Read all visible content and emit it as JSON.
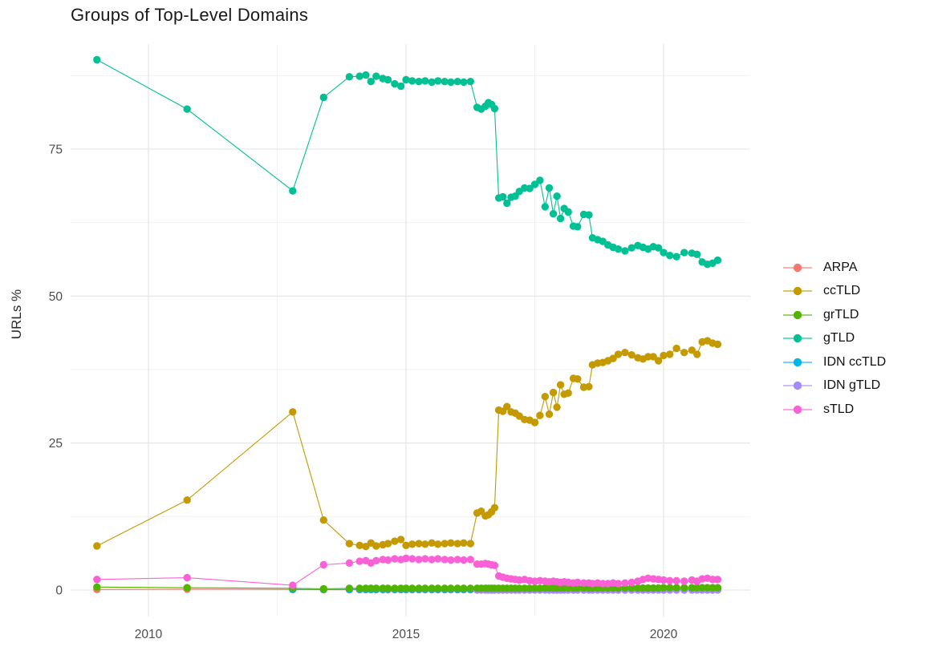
{
  "chart_data": {
    "type": "line",
    "title": "Groups of Top-Level Domains",
    "xlabel": "",
    "ylabel": "URLs %",
    "x_ticks": [
      2010,
      2015,
      2020
    ],
    "x_minor_gridlines": [
      2012.5,
      2017.5
    ],
    "y_ticks": [
      0,
      25,
      50,
      75
    ],
    "y_minor_gridlines": [
      12.5,
      37.5,
      62.5,
      87.5
    ],
    "xlim": [
      2008.5,
      2021.7
    ],
    "ylim": [
      0,
      93
    ],
    "grid": true,
    "legend_position": "right",
    "dense_years": [
      2014.1,
      2014.22,
      2014.32,
      2014.42,
      2014.55,
      2014.65,
      2014.78,
      2014.9,
      2015.0,
      2015.12,
      2015.25,
      2015.37,
      2015.5,
      2015.62,
      2015.75,
      2015.87,
      2016.0,
      2016.12,
      2016.25,
      2016.38,
      2016.46,
      2016.54,
      2016.6,
      2016.66,
      2016.72,
      2016.8,
      2016.88,
      2016.96,
      2017.04,
      2017.12,
      2017.2,
      2017.3,
      2017.4,
      2017.5,
      2017.6,
      2017.7,
      2017.78,
      2017.86,
      2017.93,
      2018.0,
      2018.07,
      2018.15,
      2018.25,
      2018.33,
      2018.45,
      2018.55,
      2018.62,
      2018.72,
      2018.82,
      2018.92,
      2019.02,
      2019.12,
      2019.25,
      2019.38,
      2019.5,
      2019.6,
      2019.7,
      2019.8,
      2019.9,
      2020.0,
      2020.12,
      2020.25,
      2020.4,
      2020.55,
      2020.65,
      2020.75,
      2020.85,
      2020.95,
      2021.05
    ],
    "series": [
      {
        "name": "ARPA",
        "color": "#F8766D",
        "prefix": [
          [
            2009.0,
            0.1
          ],
          [
            2010.75,
            0.15
          ],
          [
            2012.8,
            0.1
          ],
          [
            2013.4,
            0.05
          ],
          [
            2013.9,
            0.05
          ]
        ],
        "dense": [
          0.05,
          0.05,
          0.05,
          0.05,
          0.05,
          0.05,
          0.05,
          0.05,
          0.05,
          0.05,
          0.05,
          0.05,
          0.05,
          0.05,
          0.05,
          0.05,
          0.05,
          0.05,
          0.05,
          0.05,
          0.05,
          0.05,
          0.05,
          0.05,
          0.05,
          0.05,
          0.05,
          0.05,
          0.05,
          0.05,
          0.05,
          0.05,
          0.05,
          0.05,
          0.05,
          0.05,
          0.05,
          0.05,
          0.05,
          0.05,
          0.05,
          0.05,
          0.05,
          0.05,
          0.05,
          0.05,
          0.05,
          0.05,
          0.05,
          0.05,
          0.05,
          0.05,
          0.05,
          0.05,
          0.05,
          0.05,
          0.05,
          0.05,
          0.05,
          0.05,
          0.05,
          0.05,
          0.05,
          0.05,
          0.05,
          0.05,
          0.05,
          0.05,
          0.05
        ]
      },
      {
        "name": "ccTLD",
        "color": "#C49A00",
        "prefix": [
          [
            2009.0,
            7.5
          ],
          [
            2010.75,
            15.3
          ],
          [
            2012.8,
            30.3
          ],
          [
            2013.4,
            11.9
          ],
          [
            2013.9,
            7.9
          ]
        ],
        "dense": [
          7.6,
          7.4,
          8.0,
          7.5,
          7.7,
          7.9,
          8.3,
          8.6,
          7.6,
          7.8,
          7.9,
          7.8,
          8.0,
          7.8,
          7.9,
          8.0,
          7.9,
          8.0,
          7.9,
          13.1,
          13.4,
          12.6,
          12.8,
          13.3,
          14.0,
          30.6,
          30.4,
          31.2,
          30.3,
          30.1,
          29.6,
          29.0,
          28.9,
          28.5,
          29.7,
          32.9,
          29.9,
          33.6,
          31.1,
          34.9,
          33.3,
          33.5,
          36.0,
          35.9,
          34.5,
          34.6,
          38.3,
          38.6,
          38.7,
          39.0,
          39.4,
          40.1,
          40.4,
          40.0,
          39.5,
          39.3,
          39.7,
          39.7,
          39.0,
          39.9,
          40.1,
          41.1,
          40.4,
          40.8,
          40.1,
          42.2,
          42.4,
          42.0,
          41.8
        ]
      },
      {
        "name": "grTLD",
        "color": "#53B400",
        "prefix": [
          [
            2009.0,
            0.5
          ],
          [
            2010.75,
            0.4
          ],
          [
            2012.8,
            0.3
          ],
          [
            2013.4,
            0.2
          ],
          [
            2013.9,
            0.3
          ]
        ],
        "dense": [
          0.3,
          0.3,
          0.3,
          0.3,
          0.3,
          0.3,
          0.3,
          0.3,
          0.3,
          0.3,
          0.3,
          0.3,
          0.3,
          0.3,
          0.3,
          0.3,
          0.3,
          0.3,
          0.3,
          0.3,
          0.3,
          0.3,
          0.3,
          0.3,
          0.3,
          0.3,
          0.3,
          0.3,
          0.3,
          0.3,
          0.3,
          0.3,
          0.3,
          0.3,
          0.3,
          0.35,
          0.35,
          0.35,
          0.35,
          0.35,
          0.35,
          0.35,
          0.35,
          0.35,
          0.35,
          0.35,
          0.35,
          0.35,
          0.35,
          0.35,
          0.35,
          0.35,
          0.35,
          0.35,
          0.35,
          0.35,
          0.35,
          0.35,
          0.35,
          0.4,
          0.4,
          0.4,
          0.4,
          0.4,
          0.4,
          0.4,
          0.4,
          0.4,
          0.4
        ]
      },
      {
        "name": "gTLD",
        "color": "#00C094",
        "prefix": [
          [
            2009.0,
            90.2
          ],
          [
            2010.75,
            81.8
          ],
          [
            2012.8,
            67.9
          ],
          [
            2013.4,
            83.8
          ],
          [
            2013.9,
            87.3
          ]
        ],
        "dense": [
          87.4,
          87.6,
          86.5,
          87.4,
          87.0,
          86.8,
          86.1,
          85.7,
          86.8,
          86.6,
          86.5,
          86.6,
          86.4,
          86.6,
          86.5,
          86.4,
          86.5,
          86.4,
          86.5,
          82.1,
          81.8,
          82.3,
          82.9,
          82.6,
          81.9,
          66.7,
          66.9,
          65.8,
          66.8,
          67.0,
          67.8,
          68.4,
          68.3,
          69.0,
          69.7,
          65.2,
          68.4,
          64.0,
          67.0,
          63.2,
          64.9,
          64.3,
          61.9,
          61.8,
          63.9,
          63.8,
          59.9,
          59.6,
          59.3,
          58.7,
          58.3,
          58.0,
          57.7,
          58.2,
          58.6,
          58.3,
          58.0,
          58.4,
          58.2,
          57.4,
          56.9,
          56.7,
          57.4,
          57.3,
          57.1,
          55.8,
          55.4,
          55.6,
          56.1
        ]
      },
      {
        "name": "IDN ccTLD",
        "color": "#00B6EB",
        "prefix": [
          [
            2012.8,
            0.1
          ],
          [
            2013.4,
            0.1
          ],
          [
            2013.9,
            0.1
          ]
        ],
        "dense": [
          0.15,
          0.15,
          0.15,
          0.15,
          0.15,
          0.15,
          0.15,
          0.15,
          0.15,
          0.15,
          0.15,
          0.15,
          0.15,
          0.15,
          0.15,
          0.15,
          0.15,
          0.15,
          0.15,
          0.1,
          0.1,
          0.1,
          0.1,
          0.1,
          0.1,
          0.1,
          0.1,
          0.1,
          0.1,
          0.1,
          0.1,
          0.1,
          0.1,
          0.1,
          0.1,
          0.1,
          0.1,
          0.1,
          0.1,
          0.1,
          0.1,
          0.1,
          0.1,
          0.1,
          0.1,
          0.1,
          0.1,
          0.1,
          0.1,
          0.1,
          0.1,
          0.1,
          0.1,
          0.1,
          0.1,
          0.1,
          0.1,
          0.1,
          0.1,
          0.1,
          0.1,
          0.1,
          0.1,
          0.1,
          0.1,
          0.1,
          0.1,
          0.1,
          0.1
        ]
      },
      {
        "name": "IDN gTLD",
        "color": "#A58AFF",
        "prefix": [],
        "dense": [
          null,
          null,
          null,
          null,
          null,
          null,
          null,
          null,
          null,
          null,
          null,
          null,
          null,
          null,
          null,
          null,
          null,
          null,
          null,
          0.02,
          0.02,
          0.02,
          0.02,
          0.02,
          0.02,
          0.02,
          0.02,
          0.02,
          0.02,
          0.02,
          0.02,
          0.02,
          0.02,
          0.02,
          0.02,
          0.02,
          0.02,
          0.02,
          0.02,
          0.02,
          0.02,
          0.02,
          0.02,
          0.02,
          0.02,
          0.02,
          0.02,
          0.02,
          0.02,
          0.02,
          0.02,
          0.02,
          0.02,
          0.02,
          0.02,
          0.02,
          0.02,
          0.02,
          0.02,
          0.02,
          0.02,
          0.02,
          0.02,
          0.02,
          0.02,
          0.02,
          0.02,
          0.02,
          0.02
        ]
      },
      {
        "name": "sTLD",
        "color": "#FB61D7",
        "prefix": [
          [
            2009.0,
            1.8
          ],
          [
            2010.75,
            2.1
          ],
          [
            2012.8,
            0.8
          ],
          [
            2013.4,
            4.3
          ],
          [
            2013.9,
            4.6
          ]
        ],
        "dense": [
          4.9,
          5.0,
          4.6,
          5.0,
          5.2,
          5.1,
          5.3,
          5.2,
          5.4,
          5.3,
          5.2,
          5.3,
          5.2,
          5.3,
          5.2,
          5.1,
          5.2,
          5.1,
          5.2,
          4.4,
          4.4,
          4.5,
          4.4,
          4.3,
          4.2,
          2.4,
          2.2,
          2.0,
          1.9,
          1.8,
          1.7,
          1.8,
          1.6,
          1.5,
          1.6,
          1.5,
          1.4,
          1.5,
          1.4,
          1.3,
          1.4,
          1.3,
          1.2,
          1.3,
          1.2,
          1.2,
          1.1,
          1.2,
          1.1,
          1.1,
          1.2,
          1.1,
          1.2,
          1.3,
          1.5,
          1.8,
          2.0,
          1.9,
          1.8,
          1.7,
          1.6,
          1.6,
          1.5,
          1.7,
          1.5,
          1.9,
          2.0,
          1.8,
          1.8
        ]
      }
    ]
  },
  "colors": {
    "background": "#ffffff",
    "major_gridline": "#e3e3e3",
    "minor_gridline": "#f0f0f0",
    "tick_label": "#4d4d4d",
    "title_text": "#1a1a1a"
  }
}
